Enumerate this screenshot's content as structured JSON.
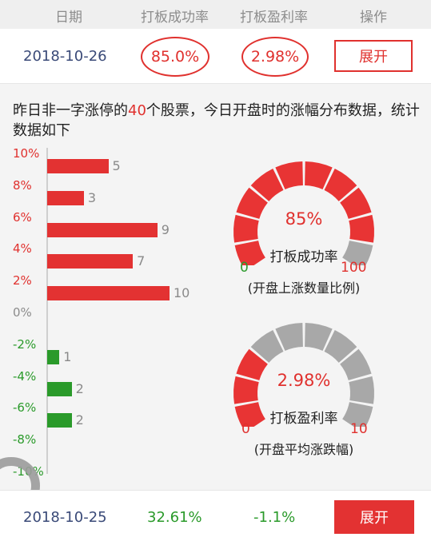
{
  "header": {
    "col_date": "日期",
    "col_success": "打板成功率",
    "col_profit": "打板盈利率",
    "col_action": "操作"
  },
  "rows": [
    {
      "date": "2018-10-26",
      "success": "85.0%",
      "profit": "2.98%",
      "action": "展开"
    },
    {
      "date": "2018-10-25",
      "success": "32.61%",
      "profit": "-1.1%",
      "action": "展开"
    }
  ],
  "description": {
    "prefix": "昨日非一字涨停的",
    "count": "40",
    "suffix": "个股票，今日开盘时的涨幅分布数据，统计数据如下"
  },
  "chart_data": {
    "type": "bar",
    "orientation": "horizontal",
    "categories": [
      "10%",
      "8%",
      "6%",
      "4%",
      "2%",
      "0%",
      "-2%",
      "-4%",
      "-6%",
      "-8%",
      "-10%"
    ],
    "values": [
      5,
      3,
      9,
      7,
      10,
      null,
      1,
      2,
      2,
      null,
      null
    ],
    "value_labels": [
      "5",
      "3",
      "9",
      "7",
      "10",
      "",
      "1",
      "2",
      "2",
      "",
      ""
    ],
    "colors": {
      "up": "#e33232",
      "down": "#2a9a2a"
    }
  },
  "gauges": [
    {
      "value": "85%",
      "fraction": 0.85,
      "title": "打板成功率",
      "min": "0",
      "max": "100",
      "note": "(开盘上涨数量比例)",
      "min_color": "#2a9a2a",
      "max_color": "#e0312e"
    },
    {
      "value": "2.98%",
      "fraction": 0.3,
      "title": "打板盈利率",
      "min": "0",
      "max": "10",
      "note": "(开盘平均涨跌幅)",
      "min_color": "#e0312e",
      "max_color": "#e0312e"
    }
  ],
  "colors": {
    "accent": "#e0312e",
    "positive": "#e0312e",
    "negative": "#2a9a2a",
    "gauge_filled": "#e83434",
    "gauge_empty": "#a8a8a8"
  }
}
